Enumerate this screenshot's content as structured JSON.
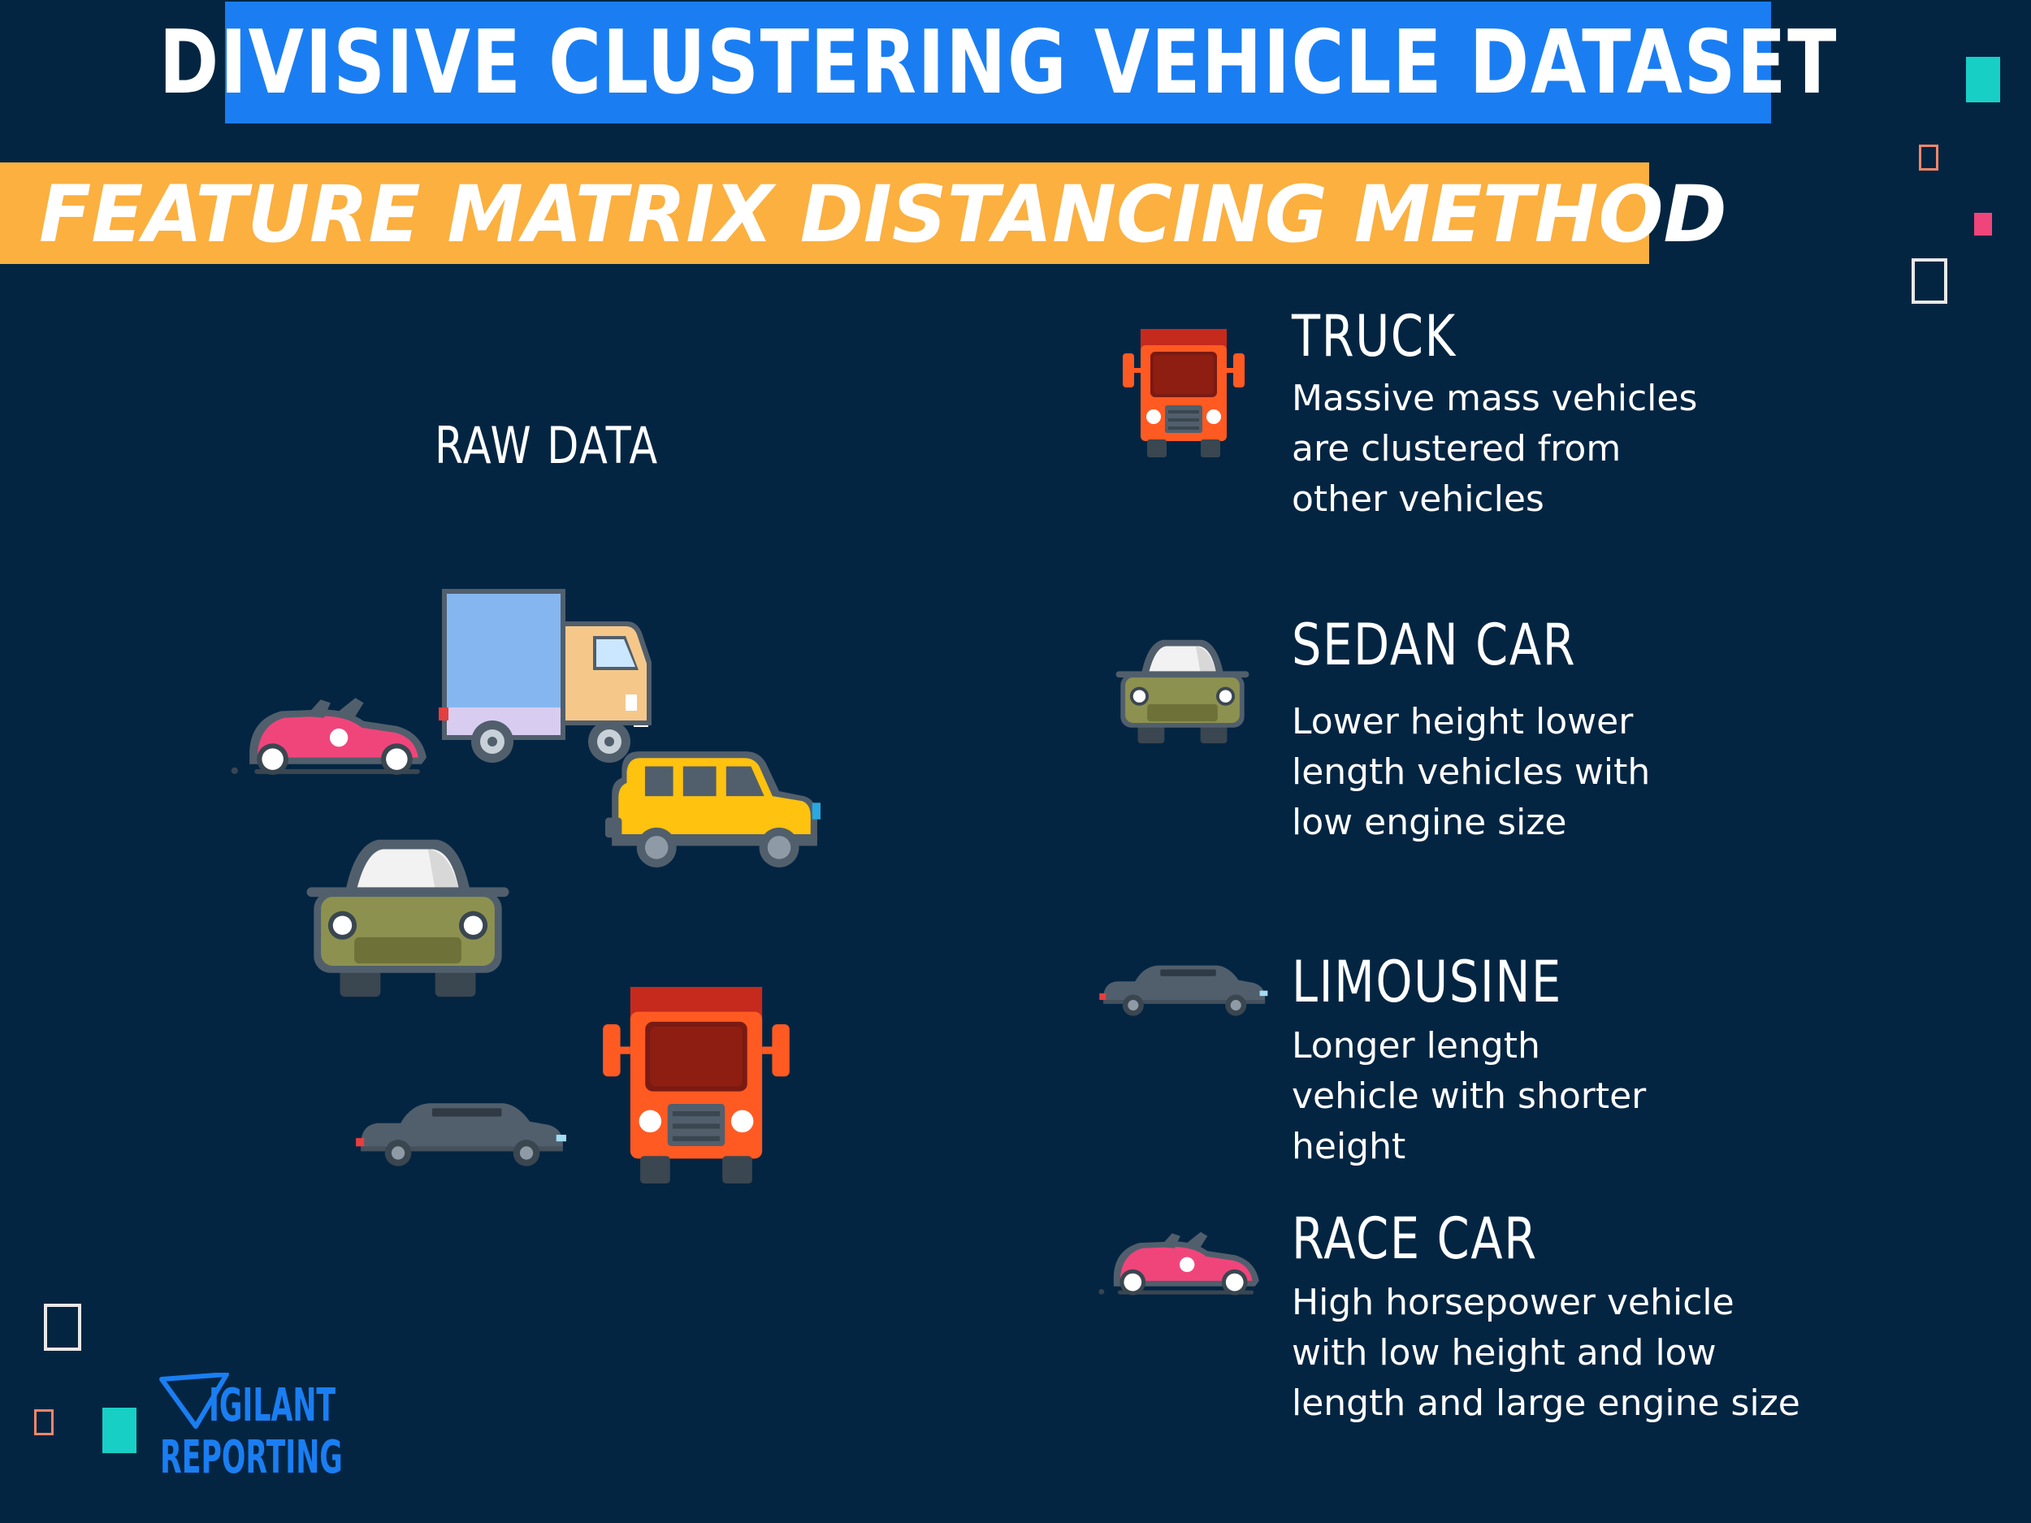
{
  "title": "DIVISIVE CLUSTERING VEHICLE DATASET",
  "subtitle": "FEATURE MATRIX DISTANCING METHOD",
  "raw_label": "RAW DATA",
  "categories": [
    {
      "title": "TRUCK",
      "desc": [
        "Massive mass vehicles",
        "are clustered from",
        "other vehicles"
      ],
      "icon": "truck-icon"
    },
    {
      "title": "SEDAN CAR",
      "desc": [
        "Lower height lower",
        "length vehicles with",
        "low engine size"
      ],
      "icon": "sedan-car-icon"
    },
    {
      "title": "LIMOUSINE",
      "desc": [
        "Longer length",
        "vehicle with shorter",
        "height"
      ],
      "icon": "limousine-icon"
    },
    {
      "title": "RACE CAR",
      "desc": [
        "High horsepower vehicle",
        "with low height and low",
        "length and large engine size"
      ],
      "icon": "race-car-icon"
    }
  ],
  "logo": {
    "line1": "IGILANT",
    "line2": "REPORTING"
  },
  "colors": {
    "background": "#042542",
    "title_banner": "#1a7ef2",
    "subtitle_banner": "#fbb040",
    "accent_teal": "#17cfc4",
    "accent_pink": "#f0457b",
    "accent_orange": "#f3876a"
  }
}
